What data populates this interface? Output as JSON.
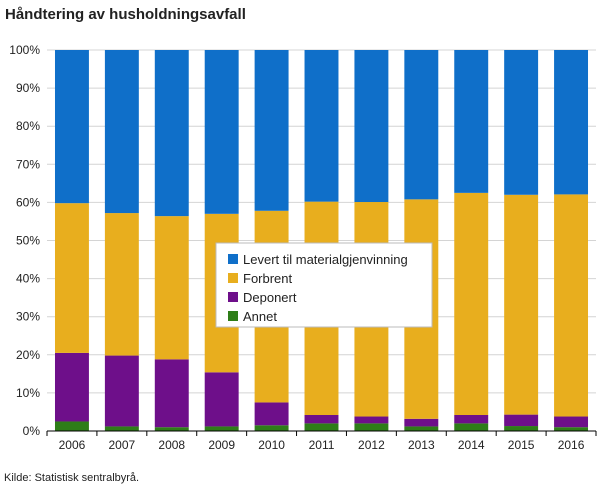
{
  "chart_data": {
    "type": "bar",
    "stacked": true,
    "normalized": true,
    "title": "Håndtering av husholdningsavfall",
    "xlabel": "",
    "ylabel": "",
    "ylim": [
      0,
      100
    ],
    "yticks": [
      "0%",
      "10%",
      "20%",
      "30%",
      "40%",
      "50%",
      "60%",
      "70%",
      "80%",
      "90%",
      "100%"
    ],
    "categories": [
      "2006",
      "2007",
      "2008",
      "2009",
      "2010",
      "2011",
      "2012",
      "2013",
      "2014",
      "2015",
      "2016"
    ],
    "series": [
      {
        "name": "Annet",
        "color": "#2e7d18",
        "values": [
          2.5,
          1.2,
          1.0,
          1.2,
          1.5,
          2.0,
          2.0,
          1.2,
          2.0,
          1.3,
          1.0
        ]
      },
      {
        "name": "Deponert",
        "color": "#6e0f8a",
        "values": [
          18.0,
          18.6,
          17.8,
          14.2,
          6.0,
          2.2,
          1.8,
          2.0,
          2.2,
          3.0,
          2.8
        ]
      },
      {
        "name": "Forbrent",
        "color": "#e8ae1e",
        "values": [
          39.3,
          37.4,
          37.6,
          41.6,
          50.3,
          56.0,
          56.3,
          57.6,
          58.3,
          57.7,
          58.3
        ]
      },
      {
        "name": "Levert til materialgjenvinning",
        "color": "#0f6fc9",
        "values": [
          40.2,
          42.8,
          43.6,
          43.0,
          42.2,
          39.8,
          39.9,
          39.2,
          37.5,
          38.0,
          37.9
        ]
      }
    ],
    "legend": {
      "position": "center",
      "entries": [
        "Levert til materialgjenvinning",
        "Forbrent",
        "Deponert",
        "Annet"
      ]
    },
    "source": "Kilde: Statistisk sentralbyrå."
  }
}
